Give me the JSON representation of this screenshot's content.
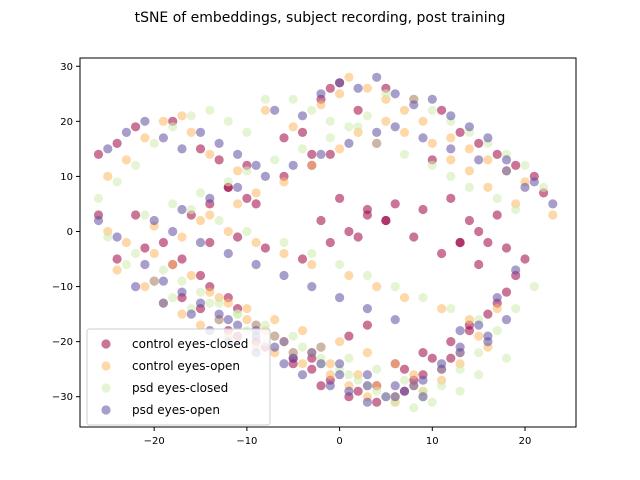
{
  "chart_data": {
    "type": "scatter",
    "title": "tSNE of embeddings, subject recording, post training",
    "xlabel": "",
    "ylabel": "",
    "xlim": [
      -28,
      25.5
    ],
    "ylim": [
      -35.5,
      31.5
    ],
    "xticks": [
      -20,
      -10,
      0,
      10,
      20
    ],
    "yticks": [
      -30,
      -20,
      -10,
      0,
      10,
      20,
      30
    ],
    "grid": false,
    "legend_position": "lower-left",
    "marker_alpha": 0.55,
    "series": [
      {
        "name": "control eyes-closed",
        "color": "#9e0142",
        "x": [
          -26,
          -24,
          -22,
          -18,
          -15,
          -13,
          -12,
          -10,
          -9,
          -6,
          -4,
          -2,
          -1,
          0,
          2,
          5,
          8,
          11,
          13,
          15,
          17,
          19,
          21,
          22,
          -26,
          -22,
          -19,
          -17,
          -15,
          -14,
          -12,
          -11,
          -9,
          -7,
          -5,
          -3,
          -2,
          1,
          3,
          6,
          8,
          10,
          12,
          14,
          17,
          19,
          20,
          -24,
          -20,
          -17,
          -15,
          -13,
          -11,
          -8,
          -5,
          -3,
          -1,
          2,
          4,
          7,
          9,
          12,
          14,
          16,
          18,
          -21,
          -18,
          -16,
          -14,
          -12,
          -10,
          -6,
          -3,
          0,
          3,
          5,
          8,
          11,
          13,
          15,
          17,
          -12,
          -9,
          -5,
          -2,
          1,
          4,
          7,
          9,
          -14,
          -11,
          -8,
          -4,
          -1,
          2,
          5,
          13,
          15,
          -2,
          1,
          3,
          6,
          9,
          12,
          14,
          -1,
          -3,
          4,
          10,
          16,
          18
        ],
        "y": [
          14,
          16,
          19,
          20,
          15,
          13,
          8,
          6,
          5,
          17,
          18,
          24,
          26,
          27,
          22,
          26,
          24,
          22,
          18,
          16,
          14,
          12,
          10,
          7,
          3,
          3,
          -2,
          -5,
          -8,
          -10,
          -12,
          -14,
          -17,
          -19,
          -22,
          -23,
          -21,
          -19,
          -17,
          -24,
          -27,
          -23,
          -20,
          -17,
          -13,
          -8,
          -5,
          -5,
          -9,
          -12,
          -14,
          -16,
          -19,
          -21,
          -23,
          -25,
          -27,
          -29,
          -31,
          -29,
          -26,
          -23,
          -18,
          -15,
          -11,
          -3,
          -6,
          3,
          5,
          8,
          12,
          10,
          14,
          6,
          4,
          2,
          -1,
          -4,
          -2,
          0,
          3,
          -18,
          -20,
          -24,
          -28,
          -30,
          -28,
          -25,
          -22,
          -2,
          -1,
          -3,
          -5,
          -2,
          -1,
          2,
          -2,
          -6,
          2,
          0,
          3,
          5,
          4,
          6,
          2,
          14,
          12,
          16,
          13,
          -2,
          -3
        ],
        "point_count_hint": 110
      },
      {
        "name": "control eyes-open",
        "color": "#fdb863",
        "x": [
          -25,
          -23,
          -21,
          -19,
          -17,
          -16,
          -14,
          -11,
          -8,
          -5,
          -2,
          0,
          1,
          3,
          5,
          7,
          9,
          12,
          14,
          16,
          18,
          20,
          23,
          -25,
          -23,
          -20,
          -18,
          -16,
          -14,
          -12,
          -10,
          -8,
          -6,
          -3,
          -1,
          2,
          4,
          6,
          8,
          11,
          13,
          15,
          17,
          -24,
          -21,
          -19,
          -17,
          -15,
          -12,
          -9,
          -7,
          -4,
          -1,
          1,
          3,
          6,
          9,
          11,
          13,
          16,
          -20,
          -17,
          -14,
          -11,
          -9,
          -6,
          -3,
          0,
          2,
          5,
          7,
          10,
          12,
          14,
          16,
          19,
          -13,
          -10,
          -7,
          -4,
          0,
          3,
          6,
          8,
          -15,
          -12,
          -9,
          -6,
          -3,
          1,
          4,
          7,
          11,
          14
        ],
        "y": [
          10,
          13,
          17,
          20,
          21,
          18,
          14,
          11,
          22,
          19,
          23,
          25,
          28,
          26,
          24,
          22,
          20,
          17,
          15,
          13,
          11,
          9,
          3,
          0,
          -2,
          -4,
          -6,
          -8,
          -11,
          -13,
          -16,
          -18,
          -20,
          -22,
          -24,
          -26,
          -28,
          -30,
          -28,
          -25,
          -22,
          -19,
          -14,
          -7,
          -10,
          -13,
          -15,
          -17,
          -19,
          -21,
          -22,
          -24,
          -26,
          -28,
          -30,
          -31,
          -29,
          -27,
          -24,
          -21,
          1,
          -1,
          3,
          5,
          7,
          9,
          12,
          15,
          18,
          20,
          18,
          16,
          13,
          11,
          8,
          5,
          -12,
          -14,
          -16,
          -18,
          -20,
          -22,
          -24,
          -26,
          2,
          0,
          -2,
          -4,
          -6,
          -8,
          -10,
          -12,
          -14,
          -16
        ],
        "point_count_hint": 100
      },
      {
        "name": "psd eyes-closed",
        "color": "#d0ecb0",
        "x": [
          -26,
          -24,
          -22,
          -20,
          -18,
          -16,
          -14,
          -12,
          -10,
          -8,
          -5,
          -3,
          -1,
          1,
          3,
          5,
          8,
          10,
          12,
          14,
          16,
          18,
          20,
          22,
          -25,
          -22,
          -19,
          -17,
          -15,
          -13,
          -11,
          -9,
          -7,
          -4,
          -2,
          0,
          2,
          4,
          6,
          9,
          11,
          13,
          15,
          17,
          19,
          21,
          -23,
          -20,
          -18,
          -16,
          -13,
          -10,
          -8,
          -5,
          -2,
          1,
          3,
          5,
          8,
          10,
          13,
          15,
          18,
          -21,
          -18,
          -15,
          -12,
          -10,
          -7,
          -4,
          -1,
          2,
          4,
          7,
          10,
          12,
          14,
          17,
          19,
          -14,
          -11,
          -8,
          -5,
          -2,
          1,
          4,
          7,
          9,
          -16,
          -13,
          -10,
          -6,
          -3,
          0,
          3,
          6,
          9,
          12,
          15
        ],
        "y": [
          6,
          9,
          12,
          16,
          19,
          21,
          22,
          20,
          18,
          24,
          24,
          22,
          20,
          19,
          21,
          25,
          24,
          22,
          20,
          18,
          16,
          14,
          12,
          8,
          -1,
          -4,
          -7,
          -9,
          -11,
          -13,
          -15,
          -17,
          -19,
          -21,
          -23,
          -25,
          -27,
          -29,
          -31,
          -30,
          -28,
          -25,
          -22,
          -18,
          -14,
          -10,
          -6,
          -9,
          -12,
          -14,
          -16,
          -18,
          -20,
          -22,
          -24,
          -26,
          -28,
          -30,
          -32,
          -31,
          -29,
          -26,
          -23,
          3,
          5,
          7,
          9,
          11,
          13,
          15,
          17,
          19,
          16,
          14,
          12,
          10,
          8,
          6,
          4,
          -13,
          -15,
          -17,
          -19,
          -21,
          -23,
          -25,
          -27,
          -29,
          4,
          2,
          0,
          -2,
          -4,
          -6,
          -8,
          -10,
          -12,
          -14,
          -16
        ],
        "point_count_hint": 100
      },
      {
        "name": "psd eyes-open",
        "color": "#5e4fa2",
        "x": [
          -25,
          -23,
          -21,
          -19,
          -17,
          -15,
          -13,
          -11,
          -9,
          -7,
          -4,
          -2,
          0,
          2,
          4,
          6,
          8,
          10,
          12,
          14,
          16,
          18,
          21,
          23,
          -26,
          -24,
          -21,
          -19,
          -17,
          -15,
          -13,
          -11,
          -9,
          -7,
          -5,
          -2,
          0,
          3,
          5,
          7,
          9,
          11,
          13,
          15,
          17,
          19,
          -22,
          -19,
          -16,
          -14,
          -12,
          -9,
          -6,
          -4,
          -1,
          1,
          3,
          6,
          8,
          11,
          13,
          16,
          18,
          -20,
          -17,
          -14,
          -11,
          -8,
          -5,
          -2,
          1,
          4,
          6,
          9,
          12,
          15,
          18,
          20,
          -12,
          -9,
          -6,
          -3,
          0,
          3,
          6,
          9,
          -18,
          -15,
          -12,
          -9,
          -6,
          -3,
          0,
          3,
          6,
          13,
          16
        ],
        "y": [
          15,
          18,
          20,
          17,
          15,
          18,
          16,
          14,
          12,
          22,
          21,
          25,
          27,
          26,
          28,
          25,
          23,
          24,
          21,
          19,
          17,
          13,
          9,
          5,
          2,
          -1,
          -6,
          -9,
          -11,
          -13,
          -15,
          -17,
          -19,
          -21,
          -23,
          -24,
          -26,
          -28,
          -30,
          -29,
          -27,
          -24,
          -21,
          -17,
          -12,
          -7,
          -10,
          -13,
          -15,
          -18,
          -20,
          -22,
          -24,
          -26,
          -28,
          -29,
          -31,
          -30,
          -28,
          -25,
          -22,
          -19,
          -16,
          2,
          4,
          6,
          8,
          10,
          12,
          14,
          16,
          18,
          19,
          17,
          15,
          13,
          11,
          8,
          -16,
          -18,
          -20,
          -22,
          -24,
          -26,
          -28,
          -30,
          0,
          -2,
          -4,
          -6,
          -8,
          -10,
          -12,
          -14,
          -16,
          -18,
          -20
        ],
        "point_count_hint": 100
      }
    ]
  }
}
